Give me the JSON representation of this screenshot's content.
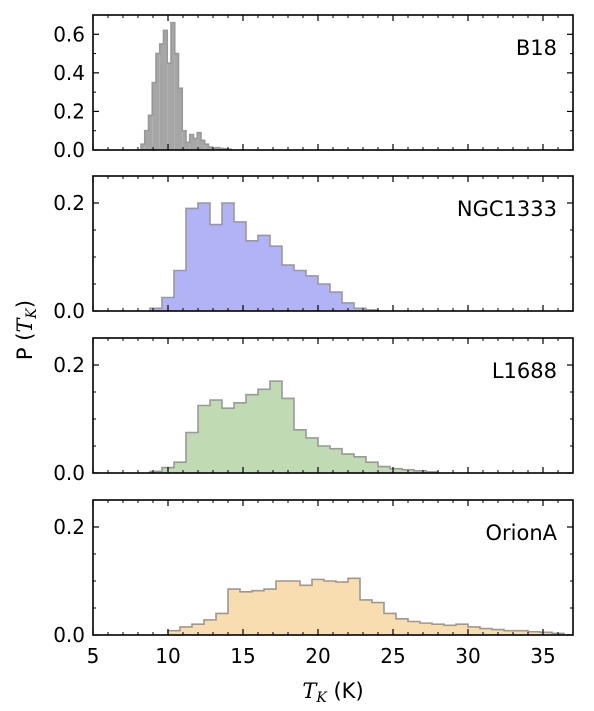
{
  "chart_data": {
    "type": "histogram",
    "ylabel_prefix": "P (",
    "ylabel_var": "T",
    "ylabel_sub": "K",
    "ylabel_suffix": ")",
    "xlabel_var": "T",
    "xlabel_sub": "K",
    "xlabel_suffix": " (K)",
    "xlim": [
      5,
      37
    ],
    "xticks": [
      5,
      10,
      15,
      20,
      25,
      30,
      35
    ],
    "bin_width": 0.8,
    "panels": [
      {
        "name": "B18",
        "color": "#a6a6a6",
        "edge": "#999999",
        "ylim": [
          0,
          0.7
        ],
        "yticks": [
          0.0,
          0.2,
          0.4,
          0.6
        ],
        "ytick_labels": [
          "0.0",
          "0.2",
          "0.4",
          "0.6"
        ],
        "bin_width": 0.25,
        "bins": [
          [
            8.2,
            0.03
          ],
          [
            8.45,
            0.1
          ],
          [
            8.7,
            0.18
          ],
          [
            8.95,
            0.35
          ],
          [
            9.2,
            0.5
          ],
          [
            9.45,
            0.55
          ],
          [
            9.7,
            0.62
          ],
          [
            9.95,
            0.45
          ],
          [
            10.2,
            0.66
          ],
          [
            10.45,
            0.5
          ],
          [
            10.7,
            0.32
          ],
          [
            10.95,
            0.1
          ],
          [
            11.2,
            0.04
          ],
          [
            11.45,
            0.08
          ],
          [
            11.7,
            0.06
          ],
          [
            11.95,
            0.09
          ],
          [
            12.2,
            0.05
          ],
          [
            12.45,
            0.03
          ],
          [
            12.7,
            0.015
          ],
          [
            12.95,
            0.01
          ],
          [
            13.2,
            0.012
          ],
          [
            13.45,
            0.008
          ],
          [
            13.7,
            0.006
          ],
          [
            13.95,
            0.004
          ]
        ]
      },
      {
        "name": "NGC1333",
        "color": "#b2b2f7",
        "edge": "#999999",
        "ylim": [
          0,
          0.25
        ],
        "yticks": [
          0.0,
          0.2
        ],
        "ytick_labels": [
          "0.0",
          "0.2"
        ],
        "bins": [
          [
            8.8,
            0.005
          ],
          [
            9.6,
            0.025
          ],
          [
            10.4,
            0.075
          ],
          [
            11.2,
            0.19
          ],
          [
            12.0,
            0.2
          ],
          [
            12.8,
            0.16
          ],
          [
            13.6,
            0.2
          ],
          [
            14.4,
            0.165
          ],
          [
            15.2,
            0.13
          ],
          [
            16.0,
            0.14
          ],
          [
            16.8,
            0.12
          ],
          [
            17.6,
            0.085
          ],
          [
            18.4,
            0.075
          ],
          [
            19.2,
            0.065
          ],
          [
            20.0,
            0.05
          ],
          [
            20.8,
            0.035
          ],
          [
            21.6,
            0.015
          ],
          [
            22.4,
            0.005
          ],
          [
            23.2,
            0.002
          ]
        ]
      },
      {
        "name": "L1688",
        "color": "#c0dab4",
        "edge": "#999999",
        "ylim": [
          0,
          0.25
        ],
        "yticks": [
          0.0,
          0.2
        ],
        "ytick_labels": [
          "0.0",
          "0.2"
        ],
        "bins": [
          [
            8.8,
            0.003
          ],
          [
            9.6,
            0.01
          ],
          [
            10.4,
            0.02
          ],
          [
            11.2,
            0.075
          ],
          [
            12.0,
            0.125
          ],
          [
            12.8,
            0.135
          ],
          [
            13.6,
            0.12
          ],
          [
            14.4,
            0.13
          ],
          [
            15.2,
            0.145
          ],
          [
            16.0,
            0.155
          ],
          [
            16.8,
            0.17
          ],
          [
            17.6,
            0.138
          ],
          [
            18.4,
            0.08
          ],
          [
            19.2,
            0.065
          ],
          [
            20.0,
            0.05
          ],
          [
            20.8,
            0.045
          ],
          [
            21.6,
            0.035
          ],
          [
            22.4,
            0.03
          ],
          [
            23.2,
            0.02
          ],
          [
            24.0,
            0.012
          ],
          [
            24.8,
            0.008
          ],
          [
            25.6,
            0.006
          ],
          [
            26.4,
            0.004
          ],
          [
            27.2,
            0.002
          ]
        ]
      },
      {
        "name": "OrionA",
        "color": "#f8ddb0",
        "edge": "#999999",
        "ylim": [
          0,
          0.25
        ],
        "yticks": [
          0.0,
          0.2
        ],
        "ytick_labels": [
          "0.0",
          "0.2"
        ],
        "bins": [
          [
            10.0,
            0.008
          ],
          [
            10.8,
            0.015
          ],
          [
            11.6,
            0.02
          ],
          [
            12.4,
            0.028
          ],
          [
            13.2,
            0.04
          ],
          [
            14.0,
            0.085
          ],
          [
            14.8,
            0.08
          ],
          [
            15.6,
            0.082
          ],
          [
            16.4,
            0.085
          ],
          [
            17.2,
            0.1
          ],
          [
            18.0,
            0.1
          ],
          [
            18.8,
            0.092
          ],
          [
            19.6,
            0.103
          ],
          [
            20.4,
            0.1
          ],
          [
            21.2,
            0.098
          ],
          [
            22.0,
            0.105
          ],
          [
            22.8,
            0.065
          ],
          [
            23.6,
            0.06
          ],
          [
            24.4,
            0.04
          ],
          [
            25.2,
            0.03
          ],
          [
            26.0,
            0.025
          ],
          [
            26.8,
            0.022
          ],
          [
            27.6,
            0.02
          ],
          [
            28.4,
            0.018
          ],
          [
            29.2,
            0.02
          ],
          [
            30.0,
            0.015
          ],
          [
            30.8,
            0.012
          ],
          [
            31.6,
            0.01
          ],
          [
            32.4,
            0.008
          ],
          [
            33.2,
            0.008
          ],
          [
            34.0,
            0.006
          ],
          [
            34.8,
            0.005
          ],
          [
            35.6,
            0.003
          ]
        ]
      }
    ]
  }
}
